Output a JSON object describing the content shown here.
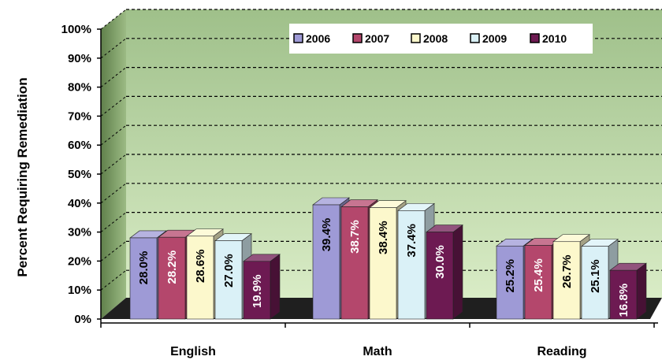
{
  "chart_data": {
    "type": "bar",
    "title": "",
    "ylabel": "Percent Requiring Remediation",
    "xlabel": "",
    "ylim": [
      0,
      100
    ],
    "yticks": [
      "0%",
      "10%",
      "20%",
      "30%",
      "40%",
      "50%",
      "60%",
      "70%",
      "80%",
      "90%",
      "100%"
    ],
    "categories": [
      "English",
      "Math",
      "Reading"
    ],
    "series": [
      {
        "name": "2006",
        "values": [
          28.0,
          39.4,
          25.2
        ],
        "labels": [
          "28.0%",
          "39.4%",
          "25.2%"
        ],
        "color": "#9e9ad6"
      },
      {
        "name": "2007",
        "values": [
          28.2,
          38.7,
          25.4
        ],
        "labels": [
          "28.2%",
          "38.7%",
          "25.4%"
        ],
        "color": "#b4476c"
      },
      {
        "name": "2008",
        "values": [
          28.6,
          38.4,
          26.7
        ],
        "labels": [
          "28.6%",
          "38.4%",
          "26.7%"
        ],
        "color": "#fcf8cc"
      },
      {
        "name": "2009",
        "values": [
          27.0,
          37.4,
          25.1
        ],
        "labels": [
          "27.0%",
          "37.4%",
          "25.1%"
        ],
        "color": "#daf1f7"
      },
      {
        "name": "2010",
        "values": [
          19.9,
          30.0,
          16.8
        ],
        "labels": [
          "19.9%",
          "30.0%",
          "16.8%"
        ],
        "color": "#6d1a52"
      }
    ],
    "legend_position": "top-right",
    "grid": true,
    "plot_background": "#cfe6b4"
  }
}
